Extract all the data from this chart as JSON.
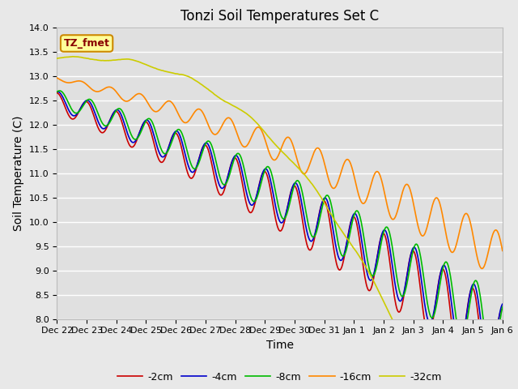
{
  "title": "Tonzi Soil Temperatures Set C",
  "xlabel": "Time",
  "ylabel": "Soil Temperature (C)",
  "ylim": [
    8.0,
    14.0
  ],
  "yticks": [
    8.0,
    8.5,
    9.0,
    9.5,
    10.0,
    10.5,
    11.0,
    11.5,
    12.0,
    12.5,
    13.0,
    13.5,
    14.0
  ],
  "xtick_labels": [
    "Dec 22",
    "Dec 23",
    "Dec 24",
    "Dec 25",
    "Dec 26",
    "Dec 27",
    "Dec 28",
    "Dec 29",
    "Dec 30",
    "Dec 31",
    "Jan 1",
    "Jan 2",
    "Jan 3",
    "Jan 4",
    "Jan 5",
    "Jan 6"
  ],
  "legend_labels": [
    "-2cm",
    "-4cm",
    "-8cm",
    "-16cm",
    "-32cm"
  ],
  "line_colors": [
    "#cc0000",
    "#0000cc",
    "#00bb00",
    "#ff8800",
    "#cccc00"
  ],
  "legend_box_color": "#ffff99",
  "legend_box_edge": "#cc8800",
  "annotation_text": "TZ_fmet",
  "annotation_color": "#880000",
  "background_color": "#e8e8e8",
  "plot_bg_color": "#e0e0e0",
  "grid_color": "#ffffff",
  "n_points": 720,
  "title_fontsize": 12,
  "axis_fontsize": 10,
  "tick_fontsize": 8,
  "legend_fontsize": 9
}
